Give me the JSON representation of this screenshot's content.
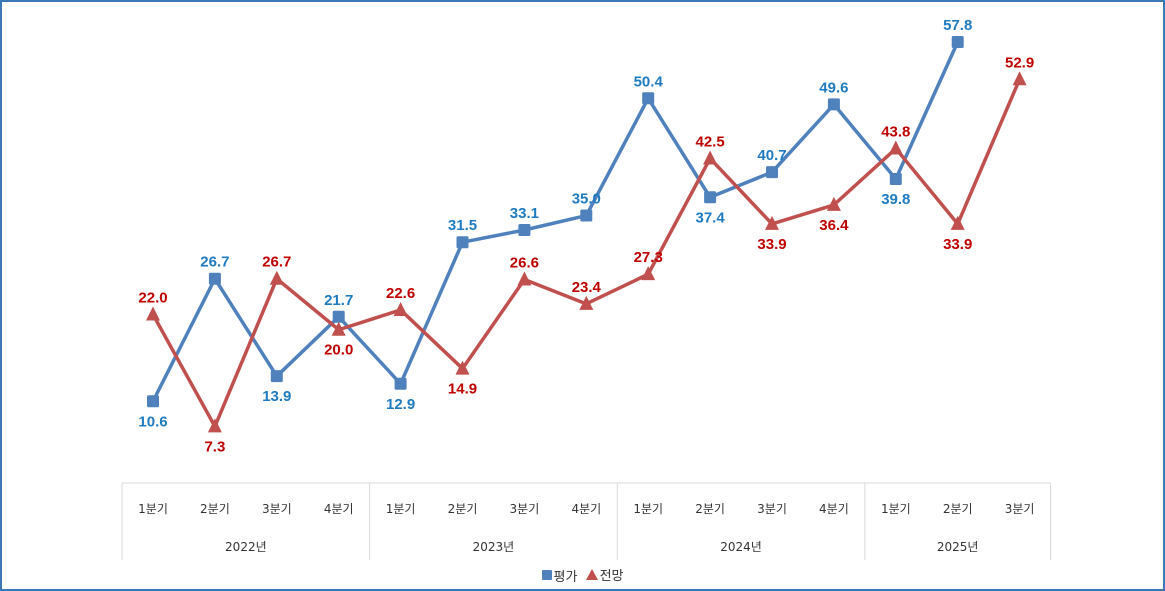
{
  "chart_data": {
    "type": "line",
    "categories": [
      "1분기",
      "2분기",
      "3분기",
      "4분기",
      "1분기",
      "2분기",
      "3분기",
      "4분기",
      "1분기",
      "2분기",
      "3분기",
      "4분기",
      "1분기",
      "2분기",
      "3분기"
    ],
    "groups": [
      {
        "label": "2022년",
        "span": 4
      },
      {
        "label": "2023년",
        "span": 4
      },
      {
        "label": "2024년",
        "span": 4
      },
      {
        "label": "2025년",
        "span": 3
      }
    ],
    "series": [
      {
        "name": "평가",
        "color": "#4f81bd",
        "label_color": "#1f7bc0",
        "marker": "square",
        "values": [
          10.6,
          26.7,
          13.9,
          21.7,
          12.9,
          31.5,
          33.1,
          35.0,
          50.4,
          37.4,
          40.7,
          49.6,
          39.8,
          57.8,
          null
        ],
        "label_pos": [
          "below",
          "above",
          "below",
          "above",
          "below",
          "above",
          "above",
          "above",
          "above",
          "below",
          "above",
          "above",
          "below",
          "above",
          ""
        ]
      },
      {
        "name": "전망",
        "color": "#c0504d",
        "label_color": "#c00000",
        "marker": "triangle",
        "values": [
          22.0,
          7.3,
          26.7,
          20.0,
          22.6,
          14.9,
          26.6,
          23.4,
          27.3,
          42.5,
          33.9,
          36.4,
          43.8,
          33.9,
          52.9
        ],
        "label_pos": [
          "above",
          "below",
          "above",
          "below",
          "above",
          "below",
          "above",
          "above",
          "above",
          "above",
          "below",
          "below",
          "above",
          "below",
          "above"
        ]
      }
    ],
    "ylim": [
      0,
      62
    ],
    "grid": false,
    "legend": "bottom"
  }
}
